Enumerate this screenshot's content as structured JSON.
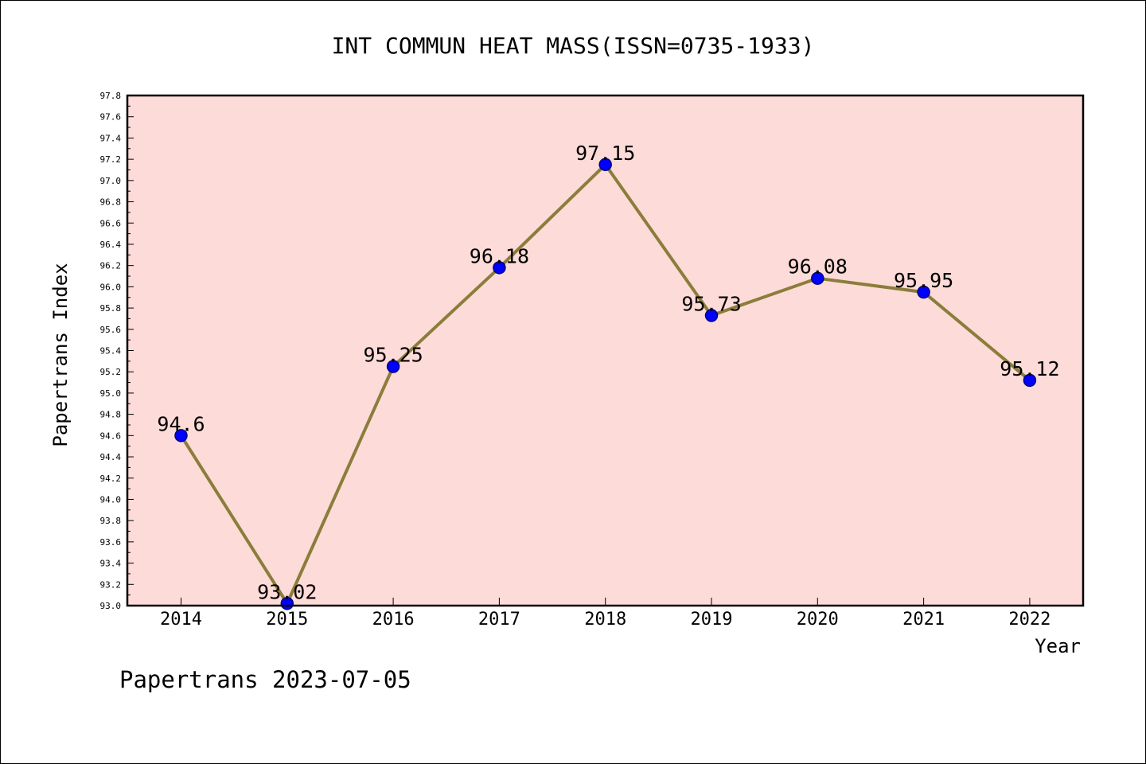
{
  "chart_data": {
    "type": "line",
    "title": "INT COMMUN HEAT MASS(ISSN=0735-1933)",
    "xlabel": "Year",
    "ylabel": "Papertrans Index",
    "categories": [
      "2014",
      "2015",
      "2016",
      "2017",
      "2018",
      "2019",
      "2020",
      "2021",
      "2022"
    ],
    "values": [
      94.6,
      93.02,
      95.25,
      96.18,
      97.15,
      95.73,
      96.08,
      95.95,
      95.12
    ],
    "data_labels": [
      "94.6",
      "93.02",
      "95.25",
      "96.18",
      "97.15",
      "95.73",
      "96.08",
      "95.95",
      "95.12"
    ],
    "ylim": [
      93.0,
      97.8
    ],
    "ytick_step": 0.2,
    "ytick_labels": [
      "93.0",
      "93.2",
      "93.4",
      "93.6",
      "93.8",
      "94.0",
      "94.2",
      "94.4",
      "94.6",
      "94.8",
      "95.0",
      "95.2",
      "95.4",
      "95.6",
      "95.8",
      "96.0",
      "96.2",
      "96.4",
      "96.6",
      "96.8",
      "97.0",
      "97.2",
      "97.4",
      "97.6",
      "97.8"
    ],
    "grid": false,
    "legend": "none",
    "footer": "Papertrans 2023-07-05",
    "colors": {
      "plot_background": "#fddbd8",
      "line": "#8b7d3a",
      "marker_fill": "#0000ff",
      "marker_stroke": "#000080"
    }
  }
}
